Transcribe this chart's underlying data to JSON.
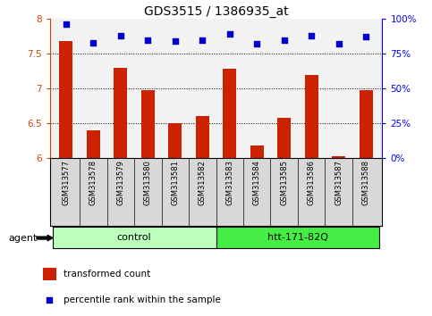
{
  "title": "GDS3515 / 1386935_at",
  "samples": [
    "GSM313577",
    "GSM313578",
    "GSM313579",
    "GSM313580",
    "GSM313581",
    "GSM313582",
    "GSM313583",
    "GSM313584",
    "GSM313585",
    "GSM313586",
    "GSM313587",
    "GSM313588"
  ],
  "transformed_count": [
    7.68,
    6.4,
    7.3,
    6.97,
    6.5,
    6.6,
    7.28,
    6.18,
    6.58,
    7.2,
    6.03,
    6.97
  ],
  "percentile_rank": [
    96,
    83,
    88,
    85,
    84,
    85,
    89,
    82,
    85,
    88,
    82,
    87
  ],
  "ylim_left": [
    6,
    8
  ],
  "ylim_right": [
    0,
    100
  ],
  "yticks_left": [
    6,
    6.5,
    7,
    7.5,
    8
  ],
  "ytick_labels_left": [
    "6",
    "6.5",
    "7",
    "7.5",
    "8"
  ],
  "yticks_right": [
    0,
    25,
    50,
    75,
    100
  ],
  "ytick_labels_right": [
    "0%",
    "25%",
    "50%",
    "75%",
    "100%"
  ],
  "hlines": [
    6.5,
    7.0,
    7.5
  ],
  "bar_color": "#cc2200",
  "dot_color": "#0000cc",
  "group_control": {
    "label": "control",
    "indices": [
      0,
      1,
      2,
      3,
      4,
      5
    ],
    "color": "#bbffbb"
  },
  "group_htt": {
    "label": "htt-171-82Q",
    "indices": [
      6,
      7,
      8,
      9,
      10,
      11
    ],
    "color": "#44ee44"
  },
  "agent_label": "agent",
  "legend_bar_label": "transformed count",
  "legend_dot_label": "percentile rank within the sample",
  "background_color": "#ffffff",
  "bar_bottom": 6.0
}
